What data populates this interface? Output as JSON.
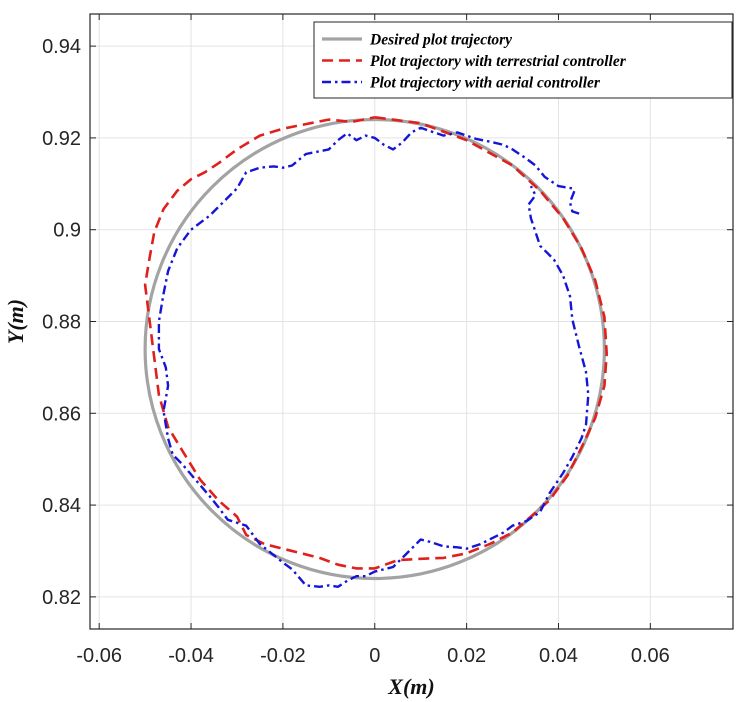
{
  "chart_data": {
    "type": "line",
    "title": "",
    "xlabel": "X(m)",
    "ylabel": "Y(m)",
    "xlim": [
      -0.062,
      0.078
    ],
    "ylim": [
      0.813,
      0.947
    ],
    "grid": true,
    "legend_position": "top-right",
    "xticks": [
      -0.06,
      -0.04,
      -0.02,
      0,
      0.02,
      0.04,
      0.06
    ],
    "xtick_labels": [
      "-0.06",
      "-0.04",
      "-0.02",
      "0",
      "0.02",
      "0.04",
      "0.06"
    ],
    "yticks": [
      0.82,
      0.84,
      0.86,
      0.88,
      0.9,
      0.92,
      0.94
    ],
    "ytick_labels": [
      "0.82",
      "0.84",
      "0.86",
      "0.88",
      "0.9",
      "0.92",
      "0.94"
    ],
    "series": [
      {
        "name": "Desired plot trajectory",
        "color": "#a3a3a3",
        "style": "solid",
        "shape": "circle",
        "center": [
          0.0,
          0.874
        ],
        "radius": 0.05
      },
      {
        "name": "Plot trajectory with terrestrial controller",
        "color": "#e0201c",
        "style": "dashed",
        "x": [
          0.0,
          0.01,
          0.02,
          0.03,
          0.036,
          0.041,
          0.045,
          0.048,
          0.05,
          0.0505,
          0.05,
          0.048,
          0.045,
          0.042,
          0.038,
          0.034,
          0.03,
          0.025,
          0.02,
          0.015,
          0.01,
          0.005,
          0.0,
          -0.004,
          -0.008,
          -0.012,
          -0.016,
          -0.02,
          -0.024,
          -0.028,
          -0.03,
          -0.034,
          -0.038,
          -0.042,
          -0.045,
          -0.047,
          -0.048,
          -0.049,
          -0.05,
          -0.049,
          -0.048,
          -0.046,
          -0.043,
          -0.04,
          -0.037,
          -0.034,
          -0.03,
          -0.025,
          -0.02,
          -0.015,
          -0.01,
          -0.005,
          0.0
        ],
        "y": [
          0.9245,
          0.9232,
          0.9195,
          0.914,
          0.9085,
          0.9025,
          0.896,
          0.889,
          0.881,
          0.873,
          0.866,
          0.859,
          0.8525,
          0.8465,
          0.841,
          0.8375,
          0.834,
          0.8315,
          0.8295,
          0.8285,
          0.8283,
          0.828,
          0.8262,
          0.8262,
          0.827,
          0.8285,
          0.8295,
          0.8305,
          0.8315,
          0.8335,
          0.8375,
          0.841,
          0.8455,
          0.852,
          0.857,
          0.864,
          0.872,
          0.88,
          0.888,
          0.894,
          0.8995,
          0.9045,
          0.9085,
          0.911,
          0.9125,
          0.9145,
          0.9175,
          0.9205,
          0.922,
          0.923,
          0.924,
          0.9235,
          0.9245
        ]
      },
      {
        "name": "Plot trajectory with aerial controller",
        "color": "#1515d8",
        "style": "dashdot",
        "x": [
          0.0445,
          0.043,
          0.0425,
          0.0435,
          0.043,
          0.04,
          0.037,
          0.035,
          0.033,
          0.03,
          0.028,
          0.025,
          0.022,
          0.02,
          0.018,
          0.015,
          0.012,
          0.01,
          0.008,
          0.006,
          0.004,
          0.002,
          0.0,
          -0.002,
          -0.004,
          -0.006,
          -0.008,
          -0.01,
          -0.015,
          -0.018,
          -0.02,
          -0.022,
          -0.025,
          -0.028,
          -0.03,
          -0.033,
          -0.036,
          -0.04,
          -0.043,
          -0.045,
          -0.046,
          -0.047,
          -0.047,
          -0.0455,
          -0.045,
          -0.046,
          -0.0455,
          -0.045,
          -0.044,
          -0.042,
          -0.039,
          -0.036,
          -0.034,
          -0.032,
          -0.028,
          -0.025,
          -0.02,
          -0.018,
          -0.015,
          -0.012,
          -0.01,
          -0.008,
          -0.006,
          -0.004,
          -0.002,
          0.0,
          0.002,
          0.004,
          0.006,
          0.008,
          0.01,
          0.012,
          0.015,
          0.018,
          0.02,
          0.023,
          0.025,
          0.028,
          0.03,
          0.033,
          0.036,
          0.038,
          0.04,
          0.041,
          0.043,
          0.045,
          0.046,
          0.0465,
          0.046,
          0.0445,
          0.043,
          0.0425,
          0.041,
          0.039,
          0.036,
          0.035,
          0.034,
          0.0335,
          0.035,
          0.034
        ],
        "y": [
          0.9035,
          0.904,
          0.906,
          0.9085,
          0.909,
          0.9095,
          0.9115,
          0.914,
          0.9155,
          0.9175,
          0.9185,
          0.9192,
          0.9198,
          0.9205,
          0.9212,
          0.9205,
          0.9215,
          0.9222,
          0.9212,
          0.919,
          0.9175,
          0.9185,
          0.92,
          0.9205,
          0.9195,
          0.921,
          0.9195,
          0.9175,
          0.9165,
          0.914,
          0.9135,
          0.9138,
          0.9135,
          0.9125,
          0.909,
          0.906,
          0.903,
          0.9,
          0.896,
          0.891,
          0.886,
          0.88,
          0.874,
          0.87,
          0.866,
          0.8605,
          0.8575,
          0.8545,
          0.851,
          0.849,
          0.8455,
          0.842,
          0.8395,
          0.8368,
          0.8355,
          0.8315,
          0.8275,
          0.826,
          0.8225,
          0.8222,
          0.8225,
          0.8222,
          0.8235,
          0.8245,
          0.8245,
          0.8255,
          0.826,
          0.8265,
          0.8285,
          0.8305,
          0.8325,
          0.832,
          0.831,
          0.8308,
          0.8305,
          0.8315,
          0.8325,
          0.834,
          0.8355,
          0.8365,
          0.8385,
          0.8425,
          0.8455,
          0.847,
          0.8505,
          0.8545,
          0.8575,
          0.864,
          0.869,
          0.8745,
          0.8805,
          0.8855,
          0.89,
          0.8935,
          0.8965,
          0.8995,
          0.9025,
          0.9055,
          0.9075,
          0.9095
        ]
      }
    ]
  }
}
